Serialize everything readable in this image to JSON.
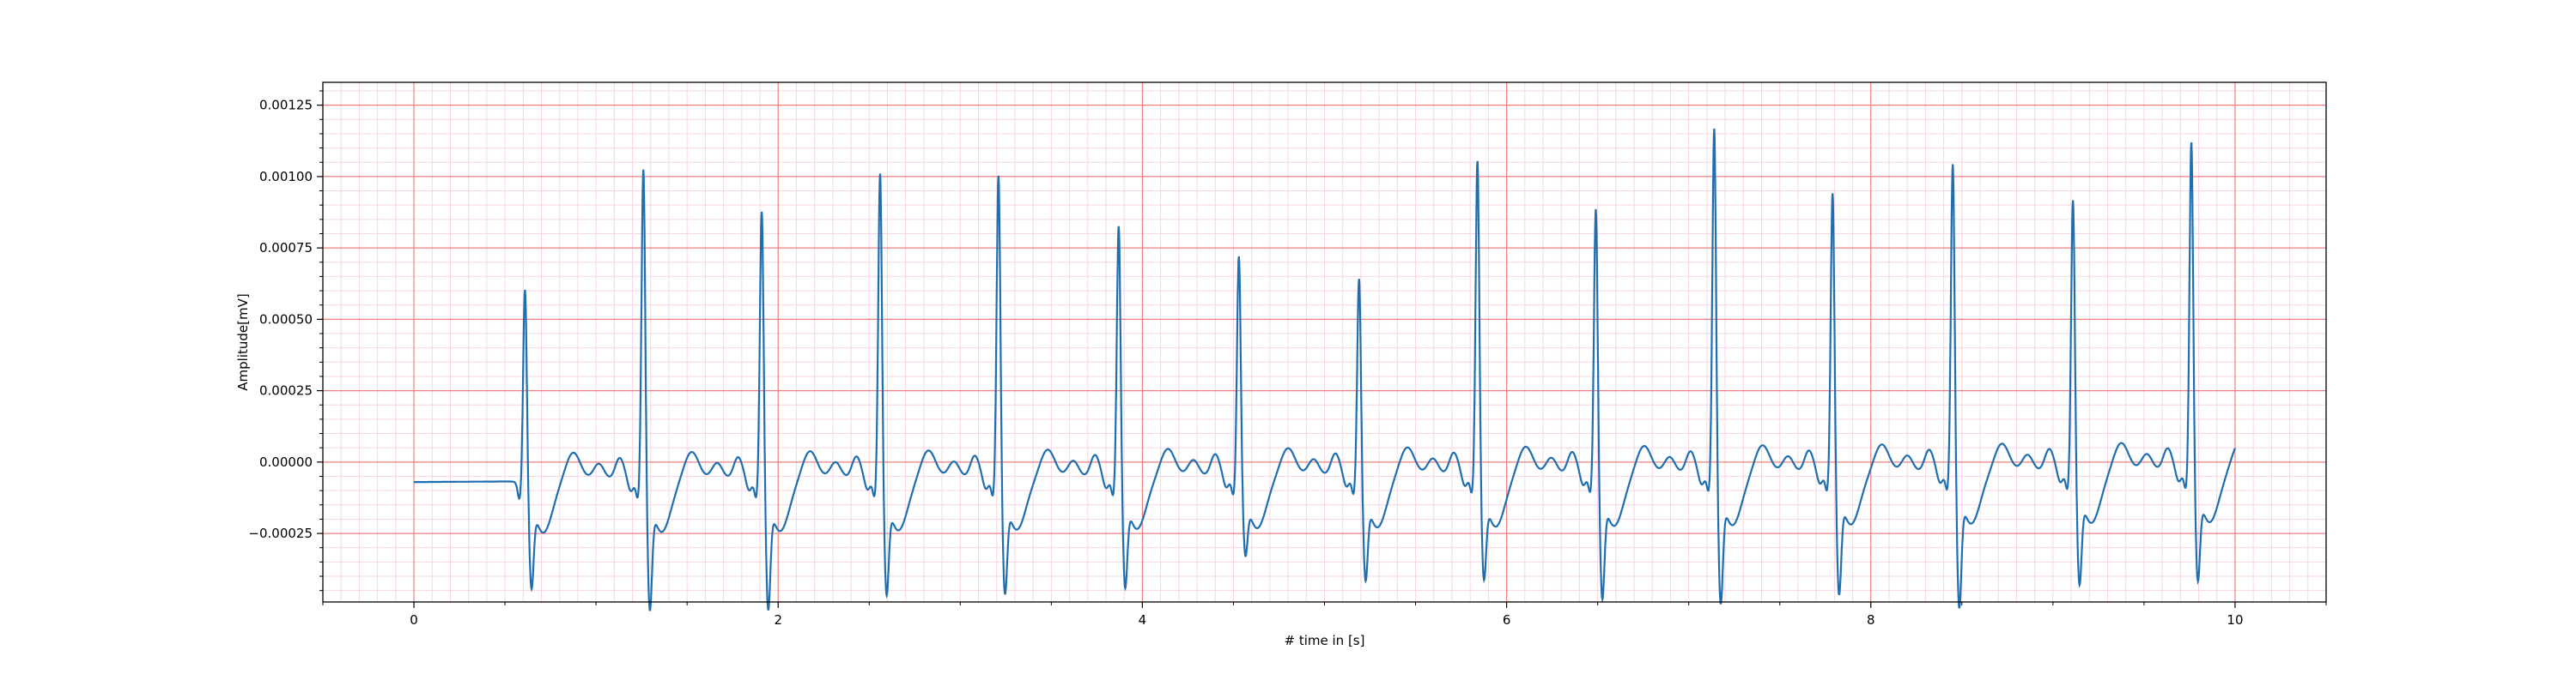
{
  "chart_data": {
    "type": "line",
    "title": "",
    "xlabel": "# time in [s]",
    "ylabel": "Amplitude[mV]",
    "xlim": [
      -0.5,
      10.5
    ],
    "ylim": [
      -0.00049,
      0.00133
    ],
    "x_ticks": [
      0,
      2,
      4,
      6,
      8,
      10
    ],
    "x_tick_labels": [
      "0",
      "2",
      "4",
      "6",
      "8",
      "10"
    ],
    "y_ticks": [
      -0.00025,
      0.0,
      0.00025,
      0.0005,
      0.00075,
      0.001,
      0.00125
    ],
    "y_tick_labels": [
      "−0.00025",
      "0.00000",
      "0.00025",
      "0.00050",
      "0.00075",
      "0.00100",
      "0.00125"
    ],
    "grid": {
      "major": true,
      "minor": true,
      "major_color": "#f08080",
      "minor_color": "#f6d6e4"
    },
    "line_color": "#1f6fb0",
    "series": [
      {
        "beats": [
          {
            "t": 0.61,
            "peak": 0.0007,
            "trough": -0.0003
          },
          {
            "t": 1.26,
            "peak": 0.00112,
            "trough": -0.00038
          },
          {
            "t": 1.91,
            "peak": 0.00097,
            "trough": -0.00038
          },
          {
            "t": 2.56,
            "peak": 0.0011,
            "trough": -0.00033
          },
          {
            "t": 3.21,
            "peak": 0.00109,
            "trough": -0.00033
          },
          {
            "t": 3.87,
            "peak": 0.00091,
            "trough": -0.00031
          },
          {
            "t": 4.53,
            "peak": 0.0008,
            "trough": -0.0002
          },
          {
            "t": 5.19,
            "peak": 0.00072,
            "trough": -0.00029
          },
          {
            "t": 5.84,
            "peak": 0.00113,
            "trough": -0.00029
          },
          {
            "t": 6.49,
            "peak": 0.00096,
            "trough": -0.00036
          },
          {
            "t": 7.14,
            "peak": 0.00124,
            "trough": -0.00038
          },
          {
            "t": 7.79,
            "peak": 0.00101,
            "trough": -0.00035
          },
          {
            "t": 8.45,
            "peak": 0.00111,
            "trough": -0.0004
          },
          {
            "t": 9.11,
            "peak": 0.00098,
            "trough": -0.00032
          },
          {
            "t": 9.76,
            "peak": 0.00118,
            "trough": -0.00031
          }
        ],
        "start": {
          "x": 0.0,
          "y": -7e-05
        },
        "end": {
          "x": 10.0,
          "y": -3e-05
        }
      }
    ]
  }
}
